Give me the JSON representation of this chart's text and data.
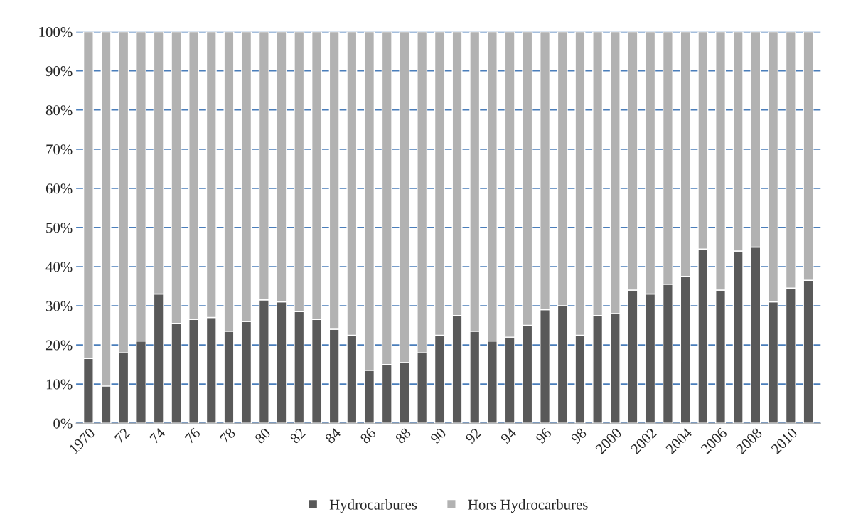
{
  "chart_data": {
    "type": "bar",
    "stacked": true,
    "categories": [
      "1970",
      null,
      "72",
      null,
      "74",
      null,
      "76",
      null,
      "78",
      null,
      "80",
      null,
      "82",
      null,
      "84",
      null,
      "86",
      null,
      "88",
      null,
      "90",
      null,
      "92",
      null,
      "94",
      null,
      "96",
      null,
      "98",
      null,
      "2000",
      null,
      "2002",
      null,
      "2004",
      null,
      "2006",
      null,
      "2008",
      null,
      "2010",
      null
    ],
    "series": [
      {
        "name": "Hydrocarbures",
        "color": "#595959",
        "values": [
          16.5,
          9.5,
          18,
          21,
          33,
          25.5,
          26.5,
          27,
          23.5,
          26,
          31.5,
          31,
          28.5,
          26.5,
          24,
          22.5,
          13.5,
          15,
          15.5,
          18,
          22.5,
          27.5,
          23.5,
          21,
          22,
          25,
          29,
          30,
          22.5,
          27.5,
          28,
          34,
          33,
          35.5,
          37.5,
          44.5,
          34,
          44,
          45,
          31,
          34.5,
          36.5
        ]
      },
      {
        "name": "Hors Hydrocarbures",
        "color": "#b2b2b2",
        "values": [
          83.5,
          90.5,
          82,
          79,
          67,
          74.5,
          73.5,
          73,
          76.5,
          74,
          68.5,
          69,
          71.5,
          73.5,
          76,
          77.5,
          86.5,
          85,
          84.5,
          82,
          77.5,
          72.5,
          76.5,
          79,
          78,
          75,
          71,
          70,
          77.5,
          72.5,
          72,
          66,
          67,
          64.5,
          62.5,
          55.5,
          66,
          56,
          55,
          69,
          65.5,
          63.5
        ]
      }
    ],
    "ylim": [
      0,
      100
    ],
    "yticks": [
      {
        "value": 0,
        "label": "0%"
      },
      {
        "value": 10,
        "label": "10%"
      },
      {
        "value": 20,
        "label": "20%"
      },
      {
        "value": 30,
        "label": "30%"
      },
      {
        "value": 40,
        "label": "40%"
      },
      {
        "value": 50,
        "label": "50%"
      },
      {
        "value": 60,
        "label": "60%"
      },
      {
        "value": 70,
        "label": "70%"
      },
      {
        "value": 80,
        "label": "80%"
      },
      {
        "value": 90,
        "label": "90%"
      },
      {
        "value": 100,
        "label": "100%"
      }
    ],
    "grid": "y",
    "legend": "bottom"
  }
}
